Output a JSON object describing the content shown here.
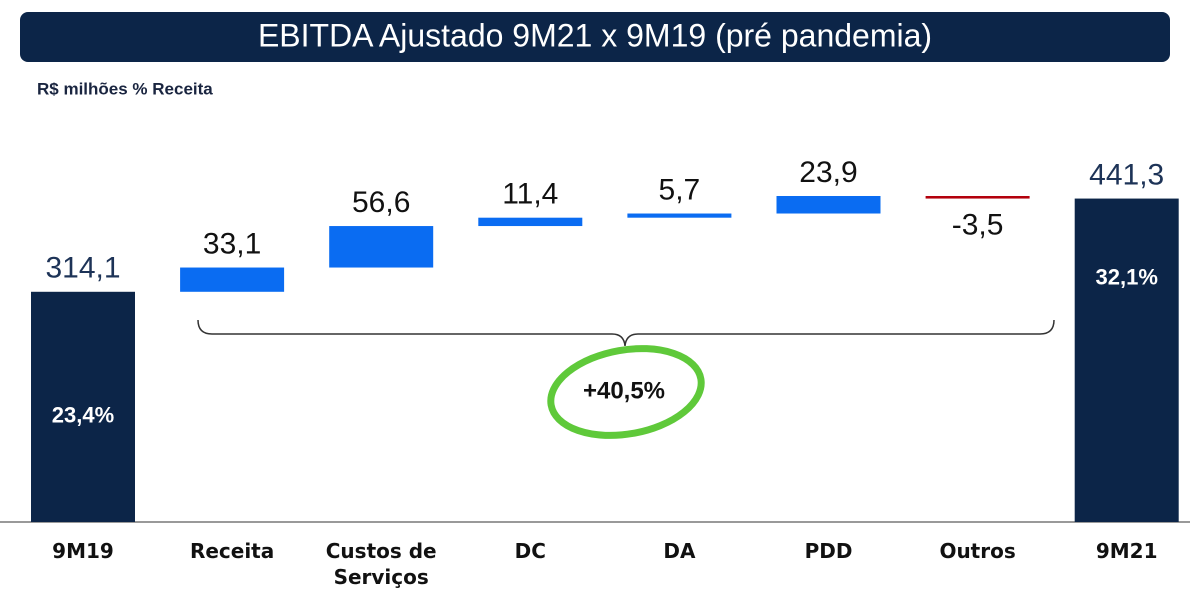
{
  "chart_data": {
    "type": "waterfall",
    "title": "EBITDA Ajustado 9M21 x 9M19 (pré pandemia)",
    "subtitle": "R$ milhões % Receita",
    "categories": [
      "9M19",
      "Receita",
      "Custos de Serviços",
      "DC",
      "DA",
      "PDD",
      "Outros",
      "9M21"
    ],
    "values": [
      314.1,
      33.1,
      56.6,
      11.4,
      5.7,
      23.9,
      -3.5,
      441.3
    ],
    "value_labels": [
      "314,1",
      "33,1",
      "56,6",
      "11,4",
      "5,7",
      "23,9",
      "-3,5",
      "441,3"
    ],
    "is_total": [
      true,
      false,
      false,
      false,
      false,
      false,
      false,
      true
    ],
    "margin_labels": [
      "23,4%",
      null,
      null,
      null,
      null,
      null,
      null,
      "32,1%"
    ],
    "annotation": "+40,5%",
    "colors": {
      "total": "#0c2548",
      "increase": "#0a6cf2",
      "decrease": "#b3000c"
    }
  }
}
